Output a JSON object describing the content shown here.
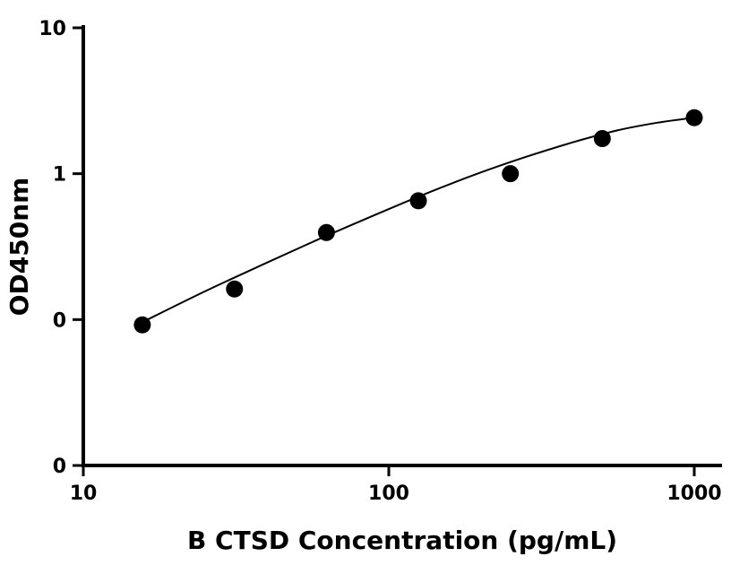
{
  "chart_data": {
    "type": "scatter",
    "title": "",
    "xlabel": "B CTSD Concentration (pg/mL)",
    "ylabel": "OD450nm",
    "x_scale": "log",
    "y_scale": "log",
    "xlim": [
      10,
      1000
    ],
    "ylim": [
      0.01,
      10
    ],
    "x_ticks": [
      {
        "value": 10,
        "label": "10"
      },
      {
        "value": 100,
        "label": "100"
      },
      {
        "value": 1000,
        "label": "1000"
      }
    ],
    "y_ticks": [
      {
        "value": 0.01,
        "label": "0"
      },
      {
        "value": 0.1,
        "label": "0"
      },
      {
        "value": 1,
        "label": "1"
      },
      {
        "value": 10,
        "label": "10"
      }
    ],
    "points": [
      {
        "x": 15.6,
        "y": 0.092
      },
      {
        "x": 31.25,
        "y": 0.162
      },
      {
        "x": 62.5,
        "y": 0.395
      },
      {
        "x": 125,
        "y": 0.652
      },
      {
        "x": 250,
        "y": 1.0
      },
      {
        "x": 500,
        "y": 1.74
      },
      {
        "x": 1000,
        "y": 2.42
      }
    ],
    "fit_curve": {
      "type": "4PL",
      "x": [
        15.6,
        25,
        40,
        60,
        90,
        130,
        190,
        280,
        400,
        560,
        760,
        1000
      ],
      "y": [
        0.096,
        0.156,
        0.246,
        0.361,
        0.521,
        0.72,
        0.98,
        1.3,
        1.64,
        1.98,
        2.24,
        2.42
      ]
    },
    "grid": false,
    "legend": "none",
    "marker_color": "#000000",
    "line_color": "#000000"
  }
}
